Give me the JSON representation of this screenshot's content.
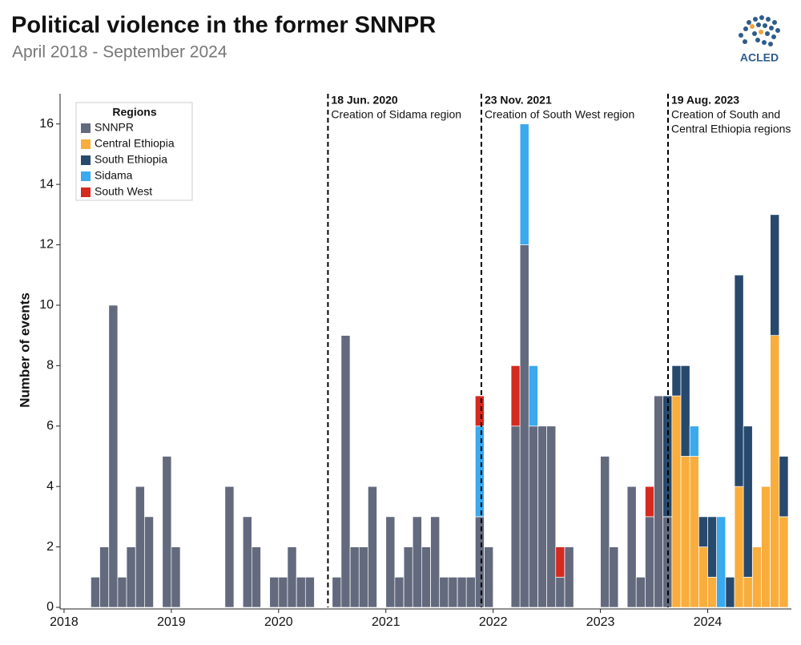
{
  "chart_data": {
    "type": "stacked_bar",
    "title": "Political violence in the former SNNPR",
    "subtitle": "April 2018 - September 2024",
    "y_label": "Number of events",
    "legend_title": "Regions",
    "legend": "upper left",
    "x": [
      2018.25,
      2018.333,
      2018.417,
      2018.5,
      2018.583,
      2018.667,
      2018.75,
      2018.833,
      2018.917,
      2019.0,
      2019.083,
      2019.167,
      2019.25,
      2019.333,
      2019.417,
      2019.5,
      2019.583,
      2019.667,
      2019.75,
      2019.833,
      2019.917,
      2020.0,
      2020.083,
      2020.167,
      2020.25,
      2020.333,
      2020.417,
      2020.5,
      2020.583,
      2020.667,
      2020.75,
      2020.833,
      2020.917,
      2021.0,
      2021.083,
      2021.167,
      2021.25,
      2021.333,
      2021.417,
      2021.5,
      2021.583,
      2021.667,
      2021.75,
      2021.833,
      2021.917,
      2022.0,
      2022.083,
      2022.167,
      2022.25,
      2022.333,
      2022.417,
      2022.5,
      2022.583,
      2022.667,
      2022.75,
      2022.833,
      2022.917,
      2023.0,
      2023.083,
      2023.167,
      2023.25,
      2023.333,
      2023.417,
      2023.5,
      2023.583,
      2023.667,
      2023.75,
      2023.833,
      2023.917,
      2024.0,
      2024.083,
      2024.167,
      2024.25,
      2024.333,
      2024.417,
      2024.5,
      2024.583,
      2024.667
    ],
    "series": [
      {
        "name": "SNNPR",
        "color": "#636a7e",
        "values": [
          1,
          2,
          10,
          1,
          2,
          4,
          3,
          0,
          5,
          2,
          0,
          0,
          0,
          0,
          0,
          4,
          0,
          3,
          2,
          0,
          1,
          1,
          2,
          1,
          1,
          0,
          0,
          1,
          9,
          2,
          2,
          4,
          0,
          3,
          1,
          2,
          3,
          2,
          3,
          1,
          1,
          1,
          1,
          3,
          2,
          0,
          0,
          6,
          12,
          6,
          6,
          6,
          1,
          2,
          0,
          0,
          0,
          5,
          2,
          0,
          4,
          1,
          3,
          7,
          3,
          0,
          0,
          0,
          0,
          0,
          0,
          0,
          0,
          0,
          0,
          0,
          0,
          0
        ]
      },
      {
        "name": "Central Ethiopia",
        "color": "#f9ad3c",
        "values": [
          0,
          0,
          0,
          0,
          0,
          0,
          0,
          0,
          0,
          0,
          0,
          0,
          0,
          0,
          0,
          0,
          0,
          0,
          0,
          0,
          0,
          0,
          0,
          0,
          0,
          0,
          0,
          0,
          0,
          0,
          0,
          0,
          0,
          0,
          0,
          0,
          0,
          0,
          0,
          0,
          0,
          0,
          0,
          0,
          0,
          0,
          0,
          0,
          0,
          0,
          0,
          0,
          0,
          0,
          0,
          0,
          0,
          0,
          0,
          0,
          0,
          0,
          0,
          0,
          0,
          7,
          5,
          5,
          2,
          1,
          0,
          0,
          4,
          1,
          2,
          4,
          9,
          3
        ]
      },
      {
        "name": "South Ethiopia",
        "color": "#27496d",
        "values": [
          0,
          0,
          0,
          0,
          0,
          0,
          0,
          0,
          0,
          0,
          0,
          0,
          0,
          0,
          0,
          0,
          0,
          0,
          0,
          0,
          0,
          0,
          0,
          0,
          0,
          0,
          0,
          0,
          0,
          0,
          0,
          0,
          0,
          0,
          0,
          0,
          0,
          0,
          0,
          0,
          0,
          0,
          0,
          0,
          0,
          0,
          0,
          0,
          0,
          0,
          0,
          0,
          0,
          0,
          0,
          0,
          0,
          0,
          0,
          0,
          0,
          0,
          0,
          0,
          4,
          1,
          3,
          0,
          1,
          2,
          0,
          1,
          7,
          5,
          0,
          0,
          4,
          2
        ]
      },
      {
        "name": "Sidama",
        "color": "#3aa9ee",
        "values": [
          0,
          0,
          0,
          0,
          0,
          0,
          0,
          0,
          0,
          0,
          0,
          0,
          0,
          0,
          0,
          0,
          0,
          0,
          0,
          0,
          0,
          0,
          0,
          0,
          0,
          0,
          0,
          0,
          0,
          0,
          0,
          0,
          0,
          0,
          0,
          0,
          0,
          0,
          0,
          0,
          0,
          0,
          0,
          3,
          0,
          0,
          0,
          0,
          4,
          2,
          0,
          0,
          0,
          0,
          0,
          0,
          0,
          0,
          0,
          0,
          0,
          0,
          0,
          0,
          0,
          0,
          0,
          1,
          0,
          0,
          3,
          0,
          0,
          0,
          0,
          0,
          0,
          0
        ]
      },
      {
        "name": "South West",
        "color": "#d42a20",
        "values": [
          0,
          0,
          0,
          0,
          0,
          0,
          0,
          0,
          0,
          0,
          0,
          0,
          0,
          0,
          0,
          0,
          0,
          0,
          0,
          0,
          0,
          0,
          0,
          0,
          0,
          0,
          0,
          0,
          0,
          0,
          0,
          0,
          0,
          0,
          0,
          0,
          0,
          0,
          0,
          0,
          0,
          0,
          0,
          1,
          0,
          0,
          0,
          2,
          0,
          0,
          0,
          0,
          1,
          0,
          0,
          0,
          0,
          0,
          0,
          0,
          0,
          0,
          1,
          0,
          0,
          0,
          0,
          0,
          0,
          0,
          0,
          0,
          0,
          0,
          0,
          0,
          0,
          0
        ]
      }
    ],
    "xlim": [
      2017.963,
      2024.78
    ],
    "xticks": [
      2018,
      2019,
      2020,
      2021,
      2022,
      2023,
      2024
    ],
    "ylim": [
      0,
      17
    ],
    "yticks": [
      0,
      2,
      4,
      6,
      8,
      10,
      12,
      14,
      16
    ],
    "annotations": [
      {
        "x": 2020.46,
        "label": "18 Jun. 2020",
        "text": [
          "Creation of Sidama region"
        ]
      },
      {
        "x": 2021.89,
        "label": "23 Nov. 2021",
        "text": [
          "Creation of South West region"
        ]
      },
      {
        "x": 2023.63,
        "label": "19 Aug. 2023",
        "text": [
          "Creation of South and",
          "Central Ethiopia regions"
        ]
      }
    ]
  },
  "logo": "ACLED"
}
